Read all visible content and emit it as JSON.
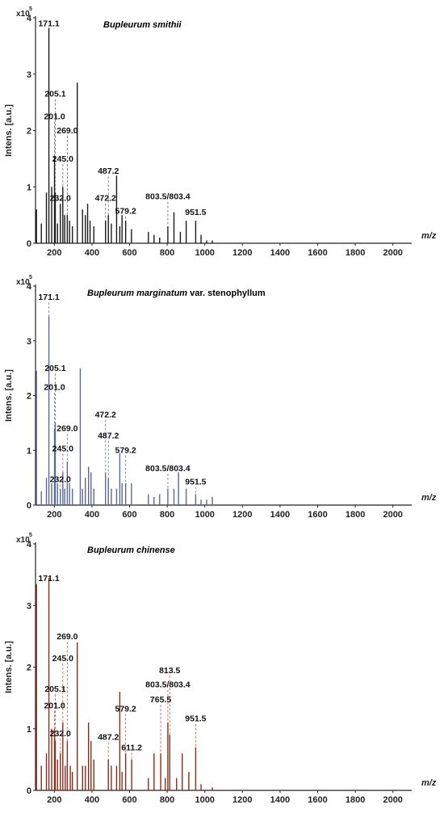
{
  "chart_data": [
    {
      "type": "bar",
      "title": "Bupleurum smithii",
      "title_plain": "",
      "ylabel": "Intens. [a.u.]",
      "xlabel": "m/z",
      "y_multiplier_base": "x10",
      "y_multiplier_exp": "5",
      "xlim": [
        100,
        2100
      ],
      "ylim": [
        0,
        4
      ],
      "xticks": [
        200,
        400,
        600,
        800,
        1000,
        1200,
        1400,
        1600,
        1800,
        2000
      ],
      "yticks": [
        0,
        1,
        2,
        3,
        4
      ],
      "color": "#1a1a1a",
      "dash_color": "#777777",
      "peaks": [
        [
          105,
          0.6
        ],
        [
          131,
          0.35
        ],
        [
          158,
          0.9
        ],
        [
          171.1,
          3.82
        ],
        [
          186,
          1.0
        ],
        [
          201.0,
          1.55
        ],
        [
          205.1,
          0.9
        ],
        [
          217,
          0.35
        ],
        [
          232.0,
          0.7
        ],
        [
          245.0,
          1.0
        ],
        [
          255,
          0.5
        ],
        [
          269.0,
          0.5
        ],
        [
          281,
          0.4
        ],
        [
          296,
          0.3
        ],
        [
          322,
          2.85
        ],
        [
          350,
          0.6
        ],
        [
          365,
          0.5
        ],
        [
          377,
          0.7
        ],
        [
          390,
          0.4
        ],
        [
          410,
          0.3
        ],
        [
          472.2,
          0.4
        ],
        [
          487.2,
          0.5
        ],
        [
          503,
          0.35
        ],
        [
          531,
          1.2
        ],
        [
          548,
          0.3
        ],
        [
          560,
          0.5
        ],
        [
          579.2,
          0.4
        ],
        [
          610,
          0.25
        ],
        [
          700,
          0.2
        ],
        [
          730,
          0.15
        ],
        [
          760,
          0.1
        ],
        [
          803.5,
          0.3
        ],
        [
          836,
          0.55
        ],
        [
          870,
          0.2
        ],
        [
          901,
          0.4
        ],
        [
          951.5,
          0.4
        ],
        [
          980,
          0.15
        ],
        [
          1010,
          0.05
        ],
        [
          1040,
          0.05
        ]
      ],
      "labels": [
        {
          "mz": 171.1,
          "text": "171.1",
          "y": 3.82,
          "ly": 3.85
        },
        {
          "mz": 205.1,
          "text": "205.1",
          "y": 0.9,
          "ly": 2.6
        },
        {
          "mz": 201.0,
          "text": "201.0",
          "y": 1.55,
          "ly": 2.2
        },
        {
          "mz": 269.0,
          "text": "269.0",
          "y": 0.5,
          "ly": 1.95
        },
        {
          "mz": 245.0,
          "text": "245.0",
          "y": 1.0,
          "ly": 1.45
        },
        {
          "mz": 487.2,
          "text": "487.2",
          "y": 0.5,
          "ly": 1.23
        },
        {
          "mz": 232.0,
          "text": "232.0",
          "y": 0.7,
          "ly": 0.75
        },
        {
          "mz": 472.2,
          "text": "472.2",
          "y": 0.4,
          "ly": 0.75
        },
        {
          "mz": 803.5,
          "text": "803.5/803.4",
          "y": 0.3,
          "ly": 0.78
        },
        {
          "mz": 579.2,
          "text": "579.2",
          "y": 0.4,
          "ly": 0.52
        },
        {
          "mz": 951.5,
          "text": "951.5",
          "y": 0.4,
          "ly": 0.5
        }
      ]
    },
    {
      "type": "bar",
      "title": "Bupleurum marginatum",
      "title_plain": " var. stenophyllum",
      "ylabel": "Intens. [a.u.]",
      "xlabel": "m/z",
      "y_multiplier_base": "x10",
      "y_multiplier_exp": "5",
      "xlim": [
        100,
        2100
      ],
      "ylim": [
        0,
        4
      ],
      "xticks": [
        200,
        400,
        600,
        800,
        1000,
        1200,
        1400,
        1600,
        1800,
        2000
      ],
      "yticks": [
        0,
        1,
        2,
        3,
        4
      ],
      "color": "#5a6a95",
      "dash_color": "#7a86aa",
      "peaks": [
        [
          105,
          2.45
        ],
        [
          131,
          0.25
        ],
        [
          158,
          0.5
        ],
        [
          171.1,
          3.45
        ],
        [
          186,
          0.4
        ],
        [
          201.0,
          1.4
        ],
        [
          205.1,
          1.5
        ],
        [
          217,
          0.4
        ],
        [
          232.0,
          0.3
        ],
        [
          245.0,
          0.6
        ],
        [
          255,
          0.3
        ],
        [
          269.0,
          0.8
        ],
        [
          281,
          0.4
        ],
        [
          296,
          0.3
        ],
        [
          338,
          2.5
        ],
        [
          350,
          0.3
        ],
        [
          365,
          0.5
        ],
        [
          382,
          0.7
        ],
        [
          395,
          0.6
        ],
        [
          410,
          0.3
        ],
        [
          472.2,
          0.6
        ],
        [
          487.2,
          0.5
        ],
        [
          503,
          0.3
        ],
        [
          531,
          0.3
        ],
        [
          548,
          0.95
        ],
        [
          560,
          0.4
        ],
        [
          579.2,
          0.4
        ],
        [
          610,
          0.4
        ],
        [
          700,
          0.2
        ],
        [
          730,
          0.15
        ],
        [
          760,
          0.2
        ],
        [
          803.5,
          0.3
        ],
        [
          836,
          0.3
        ],
        [
          860,
          0.6
        ],
        [
          901,
          0.3
        ],
        [
          951.5,
          0.2
        ],
        [
          980,
          0.1
        ],
        [
          1010,
          0.1
        ],
        [
          1040,
          0.15
        ]
      ],
      "labels": [
        {
          "mz": 171.1,
          "text": "171.1",
          "y": 3.45,
          "ly": 3.75
        },
        {
          "mz": 205.1,
          "text": "205.1",
          "y": 1.5,
          "ly": 2.45
        },
        {
          "mz": 201.0,
          "text": "201.0",
          "y": 1.4,
          "ly": 2.1
        },
        {
          "mz": 472.2,
          "text": "472.2",
          "y": 0.6,
          "ly": 1.6
        },
        {
          "mz": 269.0,
          "text": "269.0",
          "y": 0.8,
          "ly": 1.35
        },
        {
          "mz": 487.2,
          "text": "487.2",
          "y": 0.5,
          "ly": 1.22
        },
        {
          "mz": 245.0,
          "text": "245.0",
          "y": 0.6,
          "ly": 0.98
        },
        {
          "mz": 579.2,
          "text": "579.2",
          "y": 0.4,
          "ly": 0.95
        },
        {
          "mz": 803.5,
          "text": "803.5/803.4",
          "y": 0.3,
          "ly": 0.62
        },
        {
          "mz": 951.5,
          "text": "951.5",
          "y": 0.2,
          "ly": 0.38
        },
        {
          "mz": 232.0,
          "text": "232.0",
          "y": 0.3,
          "ly": 0.42
        }
      ]
    },
    {
      "type": "bar",
      "title": "Bupleurum chinense",
      "title_plain": "",
      "ylabel": "Intens. [a.u.]",
      "xlabel": "m/z",
      "y_multiplier_base": "x10",
      "y_multiplier_exp": "5",
      "xlim": [
        100,
        2100
      ],
      "ylim": [
        0,
        4
      ],
      "xticks": [
        200,
        400,
        600,
        800,
        1000,
        1200,
        1400,
        1600,
        1800,
        2000
      ],
      "yticks": [
        0,
        1,
        2,
        3,
        4
      ],
      "color": "#8a2c1a",
      "dash_color": "#cc6a55",
      "peaks": [
        [
          105,
          3.35
        ],
        [
          131,
          0.4
        ],
        [
          158,
          0.6
        ],
        [
          171.1,
          3.45
        ],
        [
          186,
          1.0
        ],
        [
          201.0,
          1.0
        ],
        [
          205.1,
          0.8
        ],
        [
          217,
          0.5
        ],
        [
          232.0,
          0.6
        ],
        [
          245.0,
          1.1
        ],
        [
          258,
          0.4
        ],
        [
          269.0,
          0.8
        ],
        [
          285,
          0.4
        ],
        [
          296,
          0.3
        ],
        [
          322,
          2.4
        ],
        [
          350,
          0.4
        ],
        [
          365,
          0.4
        ],
        [
          382,
          1.1
        ],
        [
          395,
          0.8
        ],
        [
          410,
          0.5
        ],
        [
          487.2,
          0.5
        ],
        [
          503,
          0.4
        ],
        [
          531,
          0.4
        ],
        [
          548,
          1.6
        ],
        [
          560,
          0.3
        ],
        [
          579.2,
          0.6
        ],
        [
          611.2,
          0.5
        ],
        [
          700,
          0.2
        ],
        [
          730,
          0.6
        ],
        [
          765.5,
          0.6
        ],
        [
          790,
          0.2
        ],
        [
          803.5,
          1.1
        ],
        [
          813.5,
          0.9
        ],
        [
          850,
          0.2
        ],
        [
          880,
          0.6
        ],
        [
          915,
          0.3
        ],
        [
          951.5,
          0.7
        ],
        [
          980,
          0.1
        ],
        [
          1040,
          0.05
        ]
      ],
      "labels": [
        {
          "mz": 171.1,
          "text": "171.1",
          "y": 3.45,
          "ly": 3.4
        },
        {
          "mz": 269.0,
          "text": "269.0",
          "y": 0.8,
          "ly": 2.45
        },
        {
          "mz": 245.0,
          "text": "245.0",
          "y": 1.1,
          "ly": 2.1
        },
        {
          "mz": 813.5,
          "text": "813.5",
          "y": 0.9,
          "ly": 1.9
        },
        {
          "mz": 803.5,
          "text": "803.5/803.4",
          "y": 1.1,
          "ly": 1.67
        },
        {
          "mz": 205.1,
          "text": "205.1",
          "y": 0.8,
          "ly": 1.6
        },
        {
          "mz": 765.5,
          "text": "765.5",
          "y": 0.6,
          "ly": 1.43
        },
        {
          "mz": 201.0,
          "text": "201.0",
          "y": 1.0,
          "ly": 1.33
        },
        {
          "mz": 579.2,
          "text": "579.2",
          "y": 0.6,
          "ly": 1.28
        },
        {
          "mz": 951.5,
          "text": "951.5",
          "y": 0.7,
          "ly": 1.12
        },
        {
          "mz": 232.0,
          "text": "232.0",
          "y": 0.6,
          "ly": 0.88
        },
        {
          "mz": 487.2,
          "text": "487.2",
          "y": 0.5,
          "ly": 0.82
        },
        {
          "mz": 611.2,
          "text": "611.2",
          "y": 0.5,
          "ly": 0.65
        }
      ]
    }
  ]
}
